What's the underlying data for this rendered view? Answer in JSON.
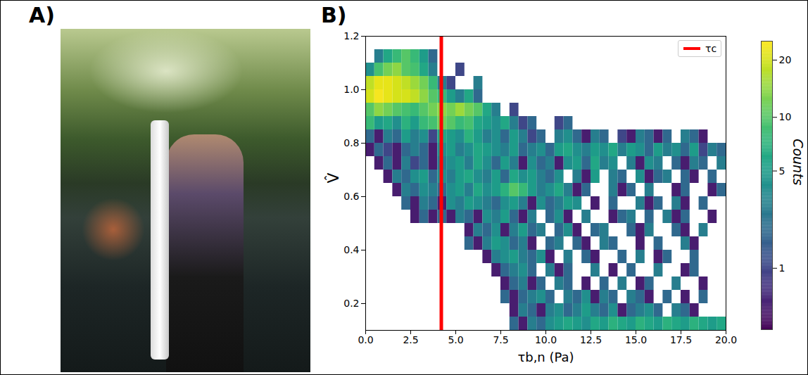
{
  "panel_labels": [
    "A)",
    "B)"
  ],
  "chart_data": {
    "type": "heatmap",
    "x_label": "τb,n (Pa)",
    "y_label": "V̂",
    "xlim": [
      0,
      20
    ],
    "ylim": [
      0.1,
      1.2
    ],
    "xticks": [
      {
        "value": 0,
        "label": "0.0"
      },
      2.5,
      {
        "value": 5,
        "label": "5.0"
      },
      7.5,
      {
        "value": 10,
        "label": "10.0"
      },
      12.5,
      {
        "value": 15,
        "label": "15.0"
      },
      17.5,
      {
        "value": 20,
        "label": "20.0"
      }
    ],
    "yticks": [
      0.2,
      0.4,
      0.6,
      0.8,
      {
        "value": 1,
        "label": "1.0"
      },
      1.2
    ],
    "x_bins": [
      0,
      0.5,
      1,
      1.5,
      2,
      2.5,
      3,
      3.5,
      4,
      4.5,
      5,
      5.5,
      6,
      6.5,
      7,
      7.5,
      8,
      8.5,
      9,
      9.5,
      10,
      10.5,
      11,
      11.5,
      12,
      12.5,
      13,
      13.5,
      14,
      14.5,
      15,
      15.5,
      16,
      16.5,
      17,
      17.5,
      18,
      18.5,
      19,
      19.5,
      20
    ],
    "y_bins": [
      0.1,
      0.15,
      0.2,
      0.25,
      0.3,
      0.35,
      0.4,
      0.45,
      0.5,
      0.55,
      0.6,
      0.65,
      0.7,
      0.75,
      0.8,
      0.85,
      0.9,
      0.95,
      1,
      1.05,
      1.1,
      1.15,
      1.2
    ],
    "counts": [
      [
        0,
        0,
        0,
        0,
        0,
        0,
        0,
        0,
        0,
        0,
        0,
        0,
        0,
        0,
        0,
        0,
        2,
        0.3,
        3,
        2,
        4,
        5,
        6,
        5,
        4,
        6,
        5,
        7,
        6,
        5,
        7,
        6,
        5,
        7,
        6,
        5,
        7,
        6,
        5,
        6
      ],
      [
        0,
        0,
        0,
        0,
        0,
        0,
        0,
        0,
        0,
        0,
        0,
        0,
        0,
        0,
        0,
        0,
        0.3,
        3,
        2,
        0.3,
        3,
        4,
        2,
        3,
        5,
        3,
        2,
        4,
        0.3,
        2,
        3,
        4,
        2,
        0,
        3,
        2,
        0.3,
        0,
        0,
        0
      ],
      [
        0,
        0,
        0,
        0,
        0,
        0,
        0,
        0,
        0,
        0,
        0,
        0,
        0,
        0,
        0,
        2,
        0.3,
        2,
        3,
        4,
        2,
        0,
        3,
        2,
        4,
        0.3,
        3,
        2,
        0,
        3,
        2,
        0.3,
        0,
        2,
        0,
        0.3,
        0,
        2,
        0,
        0
      ],
      [
        0,
        0,
        0,
        0,
        0,
        0,
        0,
        0,
        0,
        0,
        0,
        0,
        0,
        0,
        0,
        0.3,
        2,
        3,
        0.3,
        2,
        0,
        3,
        2,
        0,
        0.3,
        0,
        2,
        0,
        3,
        0,
        0.3,
        2,
        0,
        0,
        3,
        0,
        0,
        0.3,
        0,
        0
      ],
      [
        0,
        0,
        0,
        0,
        0,
        0,
        0,
        0,
        0,
        0,
        0,
        0,
        0,
        0,
        0.3,
        2,
        3,
        4,
        2,
        0,
        3,
        0.3,
        2,
        0,
        0,
        3,
        0,
        0.3,
        0,
        2,
        0,
        0,
        3,
        0,
        0,
        0.3,
        2,
        0,
        0,
        0
      ],
      [
        0,
        0,
        0,
        0,
        0,
        0,
        0,
        0,
        0,
        0,
        0,
        0,
        0,
        0.3,
        3,
        4,
        5,
        3,
        2,
        4,
        0.3,
        0,
        3,
        0,
        2,
        0.3,
        0,
        0,
        2,
        0,
        3,
        0,
        0.3,
        2,
        0,
        0,
        2,
        0,
        0,
        0
      ],
      [
        0,
        0,
        0,
        0,
        0,
        0,
        0,
        0,
        0,
        0,
        0,
        2,
        0.3,
        3,
        5,
        4,
        2,
        3,
        0.3,
        0,
        2,
        3,
        0,
        2,
        0.3,
        0,
        3,
        2,
        0,
        0,
        0.3,
        0,
        2,
        0,
        0,
        3,
        0.3,
        0,
        0,
        0
      ],
      [
        0,
        0,
        0,
        0,
        0,
        0,
        0,
        0,
        0,
        0,
        0,
        0.3,
        3,
        2,
        4,
        0.3,
        3,
        5,
        2,
        3,
        0,
        2,
        4,
        0.3,
        0,
        2,
        3,
        0,
        0,
        2,
        0.3,
        3,
        0,
        0,
        2,
        0.3,
        0,
        3,
        0,
        0
      ],
      [
        0,
        0,
        0,
        0,
        0,
        0.3,
        2,
        0.3,
        2,
        0.3,
        3,
        2,
        0.3,
        4,
        3,
        5,
        2,
        0.3,
        3,
        0,
        2,
        4,
        0.3,
        0,
        3,
        0,
        0,
        0.3,
        2,
        3,
        0,
        2,
        0,
        3,
        0.3,
        2,
        0,
        0,
        0.3,
        0
      ],
      [
        0,
        0,
        0,
        0,
        2,
        0.3,
        3,
        2,
        0.3,
        4,
        3,
        5,
        4,
        3,
        2,
        4,
        5,
        3,
        0.3,
        4,
        2,
        3,
        5,
        4,
        0,
        0.3,
        0,
        2,
        0,
        0,
        3,
        0.3,
        2,
        0,
        3,
        0.3,
        0,
        2,
        0,
        0
      ],
      [
        0,
        0,
        0,
        0.3,
        3,
        2,
        4,
        3,
        2,
        4,
        5,
        3,
        6,
        4,
        5,
        7,
        10,
        8,
        5,
        3,
        4,
        6,
        3,
        0.3,
        2,
        0,
        0,
        3,
        0.3,
        2,
        0,
        3,
        0,
        0,
        0.3,
        2,
        0,
        0,
        0.3,
        2
      ],
      [
        0,
        0,
        0.3,
        3,
        2,
        4,
        5,
        2,
        4,
        3,
        5,
        6,
        4,
        3,
        5,
        2,
        6,
        4,
        5,
        3,
        2,
        4,
        0,
        3,
        0.3,
        5,
        0,
        3,
        2,
        0,
        4,
        0.3,
        2,
        3,
        0,
        2,
        0.3,
        0,
        2,
        0
      ],
      [
        0,
        0.3,
        2,
        0.3,
        3,
        1,
        2,
        0.3,
        3,
        4,
        5,
        3,
        6,
        4,
        2,
        5,
        3,
        0.3,
        4,
        2,
        3,
        0.3,
        4,
        5,
        2,
        6,
        3,
        4,
        0,
        3,
        0.3,
        4,
        3,
        0,
        2,
        0.3,
        3,
        2,
        0,
        3
      ],
      [
        0.3,
        2,
        1,
        0.3,
        2,
        3,
        2,
        0.3,
        4,
        5,
        3,
        4,
        6,
        5,
        4,
        3,
        5,
        2,
        3,
        4,
        2,
        5,
        6,
        4,
        3,
        5,
        4,
        6,
        3,
        5,
        4,
        2,
        5,
        3,
        4,
        2,
        5,
        1,
        3,
        2
      ],
      [
        2,
        0.3,
        3,
        2,
        5,
        3,
        4,
        1,
        6,
        5,
        4,
        7,
        5,
        3,
        4,
        2,
        5,
        3,
        1,
        2,
        0,
        3,
        4,
        2,
        0.3,
        3,
        2,
        0,
        1,
        0.3,
        3,
        2,
        0.3,
        2,
        0,
        3,
        2,
        0.3,
        0,
        0
      ],
      [
        8,
        5,
        6,
        4,
        7,
        5,
        8,
        9,
        12,
        10,
        8,
        9,
        6,
        5,
        4,
        6,
        3,
        1,
        2,
        0,
        0,
        1,
        2,
        0,
        0,
        0,
        0,
        0,
        0,
        0,
        0,
        0,
        0,
        0,
        0,
        0,
        0,
        0,
        0,
        0
      ],
      [
        10,
        14,
        12,
        10,
        9,
        8,
        10,
        12,
        14,
        12,
        15,
        12,
        10,
        6,
        3,
        0,
        1,
        0,
        0,
        0,
        0,
        0,
        0,
        0,
        0,
        0,
        0,
        0,
        0,
        0,
        0,
        0,
        0,
        0,
        0,
        0,
        0,
        0,
        0,
        0
      ],
      [
        20,
        24,
        22,
        20,
        20,
        18,
        14,
        10,
        8,
        5,
        3,
        6,
        2,
        0,
        0,
        0,
        0,
        0,
        0,
        0,
        0,
        0,
        0,
        0,
        0,
        0,
        0,
        0,
        0,
        0,
        0,
        0,
        0,
        0,
        0,
        0,
        0,
        0,
        0,
        0
      ],
      [
        18,
        22,
        22,
        20,
        18,
        15,
        12,
        8,
        3,
        1,
        0,
        0,
        3,
        0,
        0,
        0,
        0,
        0,
        0,
        0,
        0,
        0,
        0,
        0,
        0,
        0,
        0,
        0,
        0,
        0,
        0,
        0,
        0,
        0,
        0,
        0,
        0,
        0,
        0,
        0
      ],
      [
        4,
        9,
        12,
        14,
        10,
        9,
        6,
        3,
        0,
        0,
        1,
        0,
        0,
        0,
        0,
        0,
        0,
        0,
        0,
        0,
        0,
        0,
        0,
        0,
        0,
        0,
        0,
        0,
        0,
        0,
        0,
        0,
        0,
        0,
        0,
        0,
        0,
        0,
        0,
        0
      ],
      [
        0,
        3,
        6,
        8,
        10,
        8,
        5,
        2,
        0,
        0,
        0,
        0,
        0,
        0,
        0,
        0,
        0,
        0,
        0,
        0,
        0,
        0,
        0,
        0,
        0,
        0,
        0,
        0,
        0,
        0,
        0,
        0,
        0,
        0,
        0,
        0,
        0,
        0,
        0,
        0
      ],
      [
        0,
        0,
        0,
        0,
        0,
        0,
        0,
        0,
        0,
        0,
        0,
        0,
        0,
        0,
        0,
        0,
        0,
        0,
        0,
        0,
        0,
        0,
        0,
        0,
        0,
        0,
        0,
        0,
        0,
        0,
        0,
        0,
        0,
        0,
        0,
        0,
        0,
        0,
        0,
        0
      ]
    ],
    "colorbar": {
      "label": "Counts",
      "range": [
        0,
        25
      ],
      "ticks": [
        1,
        5,
        10,
        20
      ]
    },
    "annotations": [
      {
        "type": "vline",
        "x": 4.2,
        "label": "τc",
        "color": "red"
      }
    ],
    "legend": "upper right"
  }
}
